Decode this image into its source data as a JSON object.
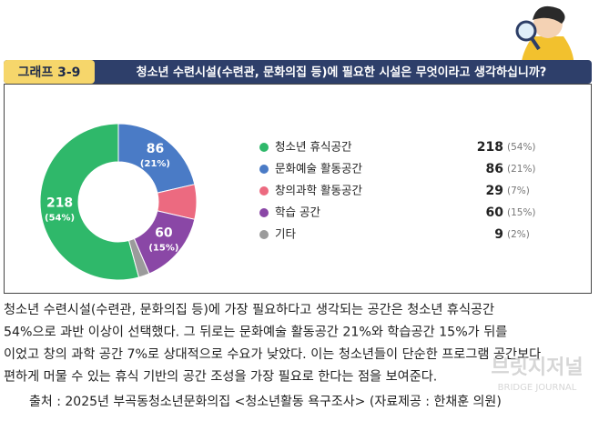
{
  "header": {
    "label": "그래프 3-9",
    "title": "청소년 수련시설(수련관, 문화의집 등)에 필요한 시설은 무엇이라고 생각하십니까?"
  },
  "chart_data": {
    "type": "pie",
    "donut": true,
    "categories": [
      "청소년 휴식공간",
      "문화예술 활동공간",
      "창의과학 활동공간",
      "학습 공간",
      "기타"
    ],
    "values": [
      218,
      86,
      29,
      60,
      9
    ],
    "percents": [
      54,
      21,
      7,
      15,
      2
    ],
    "percent_labels": [
      "(54%)",
      "(21%)",
      "(7%)",
      "(15%)",
      "(2%)"
    ],
    "colors": [
      "#2fb86a",
      "#4a7bc6",
      "#ec6a80",
      "#8a47a6",
      "#9b9b9b"
    ]
  },
  "body": {
    "lines": [
      "청소년 수련시설(수련관, 문화의집 등)에 가장 필요하다고 생각되는 공간은 청소년 휴식공간",
      "54%으로 과반 이상이 선택했다. 그 뒤로는 문화예술 활동공간 21%와 학습공간 15%가 뒤를",
      "이었고 창의 과학 공간 7%로 상대적으로 수요가 낮았다. 이는 청소년들이 단순한 프로그램 공간보다",
      "편하게 머물 수 있는 휴식 기반의 공간 조성을 가장 필요로 한다는 점을 보여준다."
    ],
    "source": "출처 : 2025년 부곡동청소년문화의집 <청소년활동 욕구조사> (자료제공 : 한채훈 의원)"
  },
  "watermark": {
    "main": "브릿지저널",
    "sub": "BRIDGE JOURNAL"
  }
}
